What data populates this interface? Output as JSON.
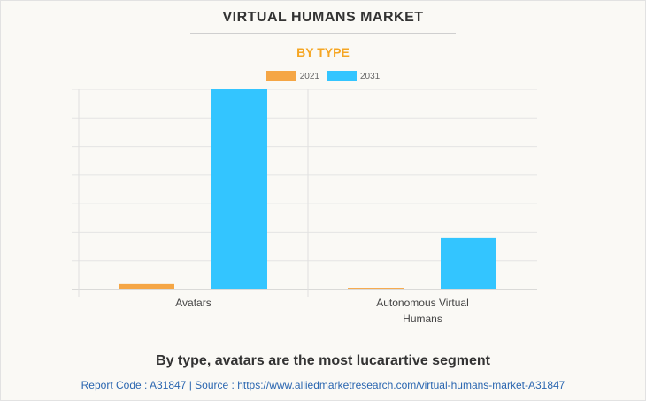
{
  "header": {
    "title": "VIRTUAL HUMANS MARKET",
    "subtitle": "BY TYPE"
  },
  "chart_data": {
    "type": "bar",
    "title": "VIRTUAL HUMANS MARKET",
    "subtitle": "BY TYPE",
    "categories": [
      "Avatars",
      "Autonomous Virtual Humans"
    ],
    "series": [
      {
        "name": "2021",
        "color": "#f5a645",
        "values": [
          0.19,
          0.06
        ]
      },
      {
        "name": "2031",
        "color": "#33c5ff",
        "values": [
          7.0,
          1.8
        ]
      }
    ],
    "ylim": [
      0,
      7
    ],
    "y_tick_labels_shown": false,
    "grid": true,
    "legend": "top-center"
  },
  "caption": "By type, avatars are the most lucarartive segment",
  "footer": "Report Code : A31847  |  Source : https://www.alliedmarketresearch.com/virtual-humans-market-A31847"
}
